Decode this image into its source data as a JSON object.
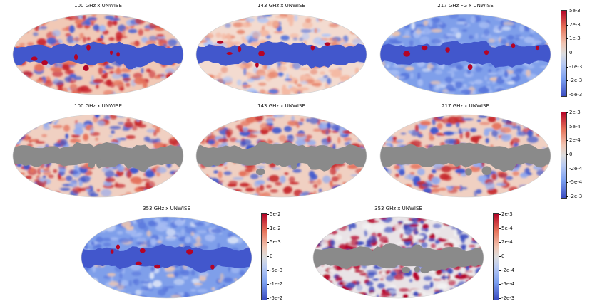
{
  "maps": [
    {
      "title": "100 GHz x UNWISE",
      "mask": false,
      "style": "mixed-red"
    },
    {
      "title": "143 GHz x UNWISE",
      "mask": false,
      "style": "mixed-light"
    },
    {
      "title": "217 GHz FG x UNWISE",
      "mask": false,
      "style": "blue"
    },
    {
      "title": "100 GHz x UNWISE",
      "mask": true,
      "style": "masked"
    },
    {
      "title": "143 GHz x UNWISE",
      "mask": true,
      "style": "masked"
    },
    {
      "title": "217 GHz x UNWISE",
      "mask": true,
      "style": "masked"
    },
    {
      "title": "353 GHz x UNWISE",
      "mask": false,
      "style": "blue"
    },
    {
      "title": "353 GHz x UNWISE",
      "mask": true,
      "style": "masked-strong"
    }
  ],
  "colorbars": [
    {
      "ticks": [
        "5e-3",
        "2e-3",
        "1e-3",
        "0",
        "-1e-3",
        "-2e-3",
        "-5e-3"
      ]
    },
    {
      "ticks": [
        "2e-3",
        "5e-4",
        "2e-4",
        "0",
        "-2e-4",
        "-5e-4",
        "-2e-3"
      ]
    },
    {
      "ticks": [
        "5e-2",
        "1e-2",
        "5e-3",
        "0",
        "-5e-3",
        "-1e-2",
        "-5e-2"
      ]
    },
    {
      "ticks": [
        "2e-3",
        "5e-4",
        "2e-4",
        "0",
        "-2e-4",
        "-5e-4",
        "-2e-3"
      ]
    }
  ],
  "colors": {
    "red": "#b40426",
    "blue": "#3b4cc0",
    "white": "#f2f2f2",
    "mask": "#8a8a8a"
  }
}
